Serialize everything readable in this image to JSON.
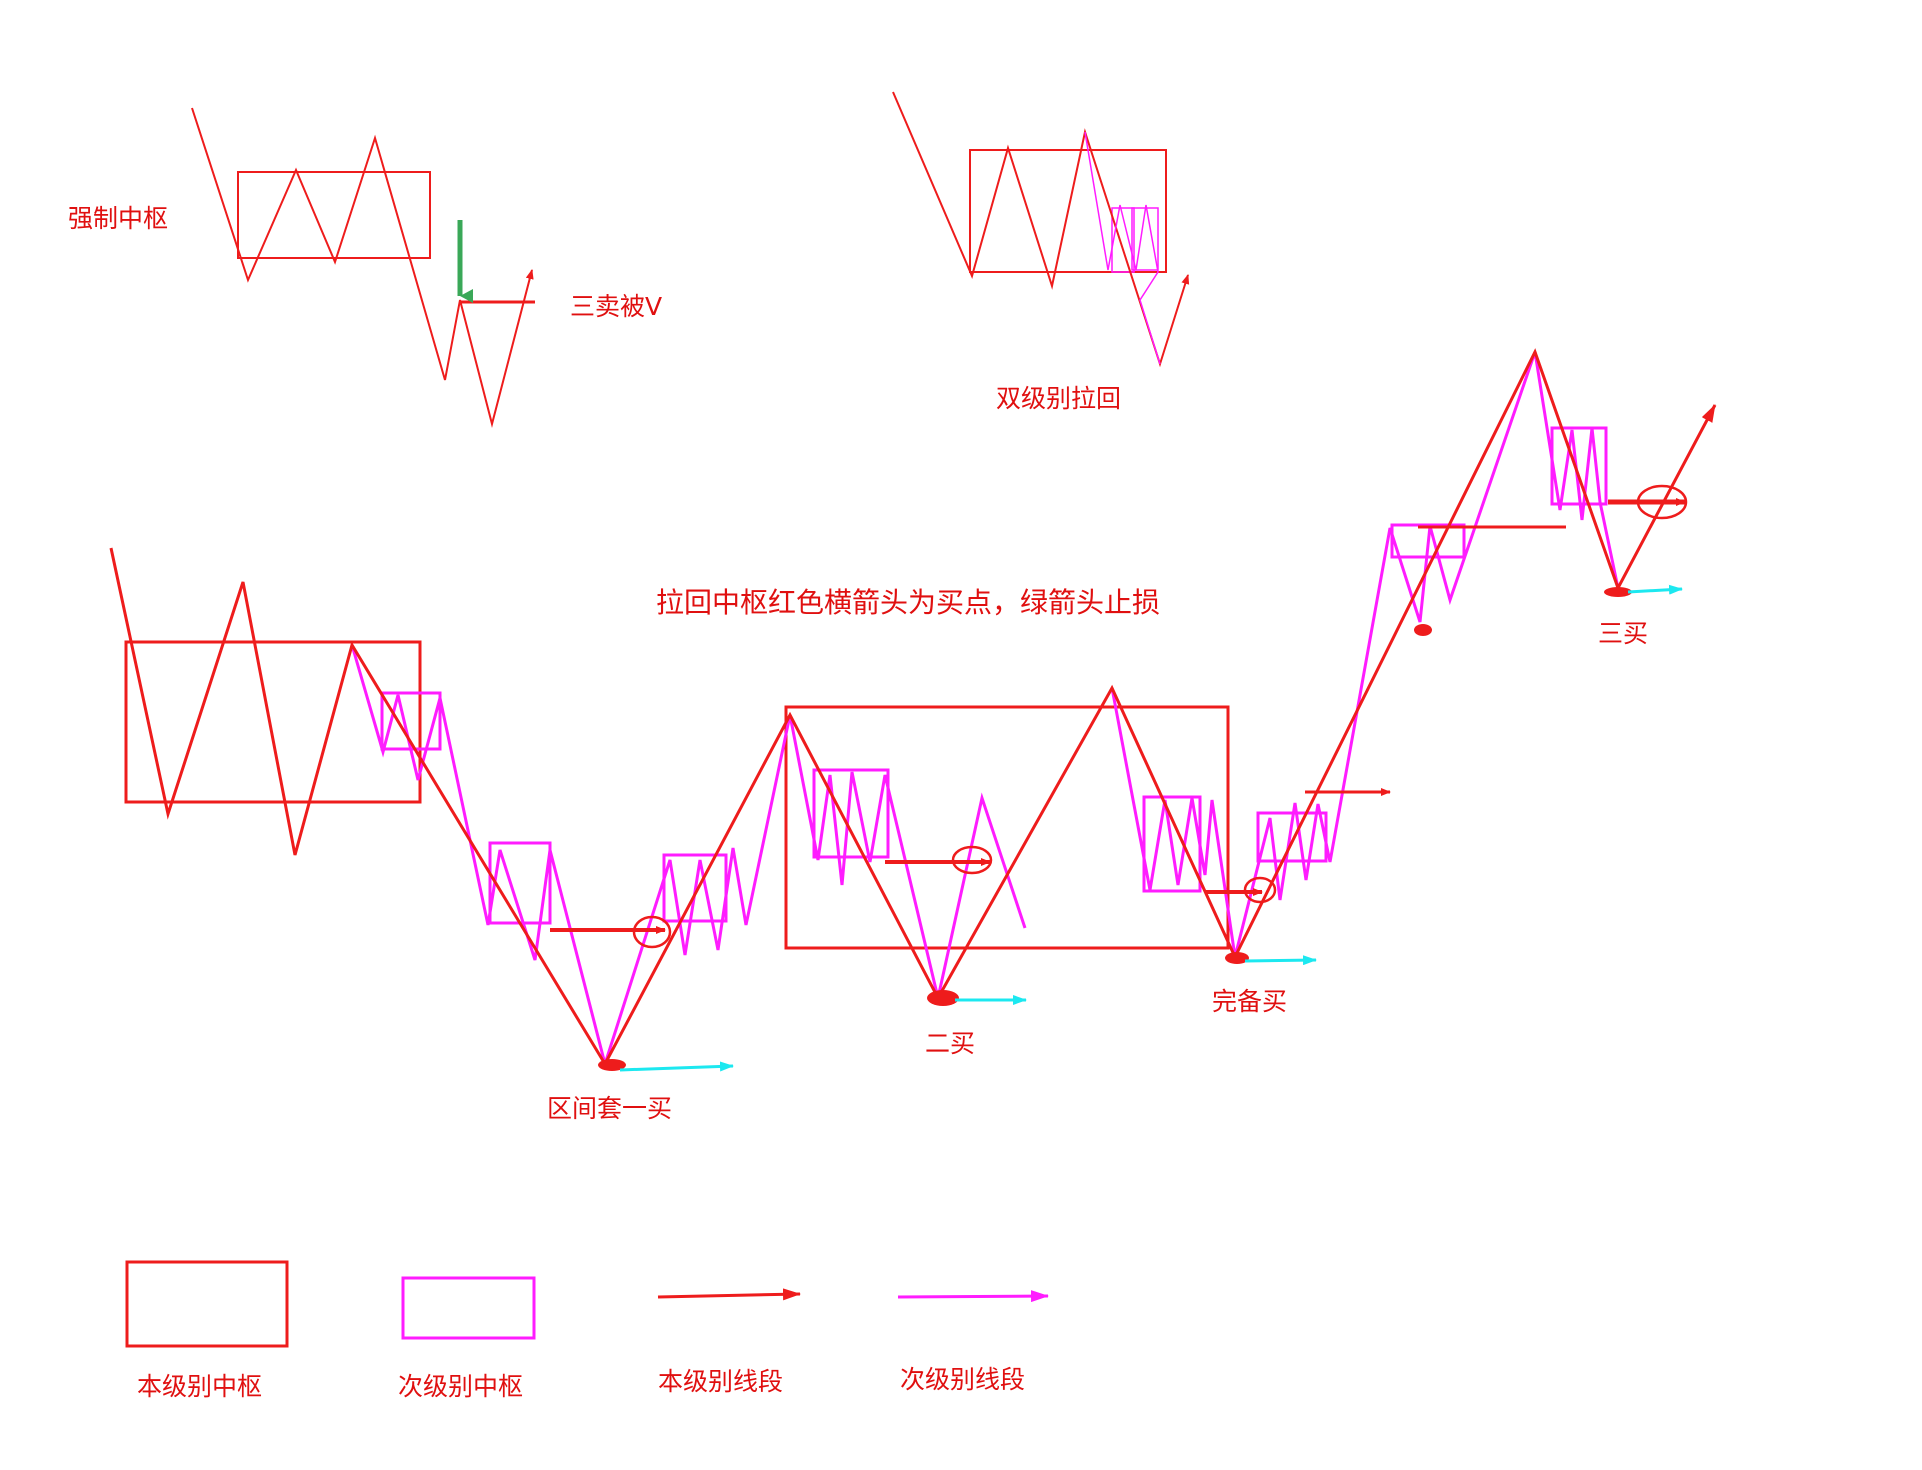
{
  "colors": {
    "main": "#ee1c1c",
    "sub": "#ff1cff",
    "stop": "#3aa858",
    "cyan": "#1ce8f0",
    "text": "#e01010"
  },
  "labels": {
    "forced_center": "强制中枢",
    "third_sell_v": "三卖被V",
    "double_level_pullback": "双级别拉回",
    "main_note": "拉回中枢红色横箭头为买点，绿箭头止损",
    "interval_first_buy": "区间套一买",
    "second_buy": "二买",
    "complete_buy": "完备买",
    "third_buy": "三买"
  },
  "legend": {
    "main_center": "本级别中枢",
    "sub_center": "次级别中枢",
    "main_segment": "本级别线段",
    "sub_segment": "次级别线段"
  }
}
